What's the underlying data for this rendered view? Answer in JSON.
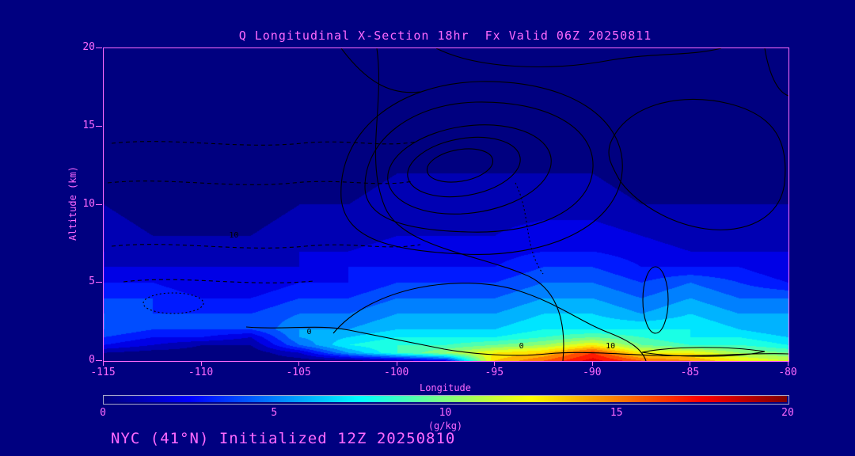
{
  "title": "Q Longitudinal X-Section 18hr  Fx Valid 06Z 20250811",
  "footer": "NYC (41°N) Initialized 12Z 20250810",
  "axes": {
    "x_label": "Longitude",
    "y_label": "Altitude (km)",
    "x_ticks": [
      -115,
      -110,
      -105,
      -100,
      -95,
      -90,
      -85,
      -80
    ],
    "y_ticks": [
      0,
      5,
      10,
      15,
      20
    ]
  },
  "colorbar": {
    "label": "(g/kg)",
    "ticks": [
      0,
      5,
      10,
      15,
      20
    ],
    "range": [
      0,
      20
    ],
    "colormap": "jet"
  },
  "colors": {
    "background": "#000080",
    "label_text": "#FF6AFF",
    "contour_line": "#000000"
  },
  "contours": {
    "labels": [
      {
        "text": "0",
        "fx": 0.3,
        "fy": 0.91
      },
      {
        "text": "0",
        "fx": 0.61,
        "fy": 0.955
      },
      {
        "text": "10",
        "fx": 0.74,
        "fy": 0.955
      },
      {
        "text": "10",
        "fx": 0.19,
        "fy": 0.6
      }
    ]
  },
  "chart_data": {
    "type": "heatmap",
    "title": "Q Longitudinal X-Section 18hr  Fx Valid 06Z 20250811",
    "xlabel": "Longitude",
    "ylabel": "Altitude (km)",
    "units": "g/kg",
    "x_range": [
      -115,
      -80
    ],
    "y_range": [
      0,
      20
    ],
    "value_range": [
      0,
      20
    ],
    "colormap": "jet",
    "legend": "filled contours = specific humidity Q (g/kg); black contours = overlay field with labels 0 and 10; dashed = negative/low values",
    "x_lon": [
      -115,
      -112.5,
      -110,
      -107.5,
      -105,
      -102.5,
      -100,
      -97.5,
      -95,
      -92.5,
      -90,
      -87.5,
      -85,
      -82.5,
      -80
    ],
    "y_alt_km": [
      0,
      0.5,
      1,
      1.5,
      2,
      3,
      4,
      5,
      6,
      7,
      8,
      10,
      12,
      16,
      20
    ],
    "values": [
      [
        0.5,
        0.3,
        0.3,
        0.2,
        0.5,
        0.8,
        1.5,
        3,
        14,
        16,
        18.5,
        16,
        15,
        13,
        12
      ],
      [
        1,
        0.5,
        0.5,
        0.3,
        2,
        6,
        9,
        11,
        13,
        14,
        17,
        13,
        13,
        11,
        10
      ],
      [
        3,
        2,
        1,
        1,
        5,
        8,
        9,
        9,
        10,
        11,
        13,
        10,
        9,
        9,
        8
      ],
      [
        4,
        3,
        3,
        2,
        6,
        7,
        8,
        8,
        8,
        9,
        10,
        9,
        8,
        8,
        7
      ],
      [
        5,
        4,
        4,
        4,
        6,
        6,
        7,
        7,
        7,
        8,
        8,
        8,
        8,
        7,
        6
      ],
      [
        5,
        4,
        4,
        4,
        5,
        5,
        6,
        6,
        6,
        7,
        7,
        6,
        7,
        6,
        6
      ],
      [
        4,
        4,
        3,
        3,
        4,
        4,
        5,
        5,
        5,
        6,
        6,
        5,
        6,
        5,
        5
      ],
      [
        3,
        3,
        2,
        2,
        3,
        3,
        4,
        4,
        4,
        5,
        5,
        4,
        5,
        4,
        3
      ],
      [
        2,
        2,
        2,
        2,
        2,
        3,
        3,
        3,
        3,
        4,
        4,
        3,
        3,
        3,
        2
      ],
      [
        2,
        1.5,
        1.5,
        1.5,
        2,
        2,
        2.5,
        2.5,
        2.5,
        3,
        3,
        2.5,
        2,
        2,
        2
      ],
      [
        1.5,
        1,
        1,
        1,
        1.5,
        1.5,
        2,
        2,
        2,
        2.5,
        2.5,
        2,
        1.5,
        1.5,
        1.5
      ],
      [
        1,
        0.5,
        0.5,
        0.5,
        1,
        1,
        1.5,
        1.5,
        1.5,
        1.5,
        1.5,
        1,
        1,
        1,
        1
      ],
      [
        0.5,
        0.3,
        0.3,
        0.3,
        0.5,
        0.5,
        1,
        1,
        1,
        1,
        1,
        0.5,
        0.5,
        0.5,
        0.5
      ],
      [
        0.1,
        0.1,
        0.1,
        0.1,
        0.1,
        0.1,
        0.1,
        0.1,
        0.1,
        0.1,
        0.1,
        0.1,
        0.1,
        0.1,
        0.1
      ],
      [
        0,
        0,
        0,
        0,
        0,
        0,
        0,
        0,
        0,
        0,
        0,
        0,
        0,
        0,
        0
      ]
    ]
  }
}
